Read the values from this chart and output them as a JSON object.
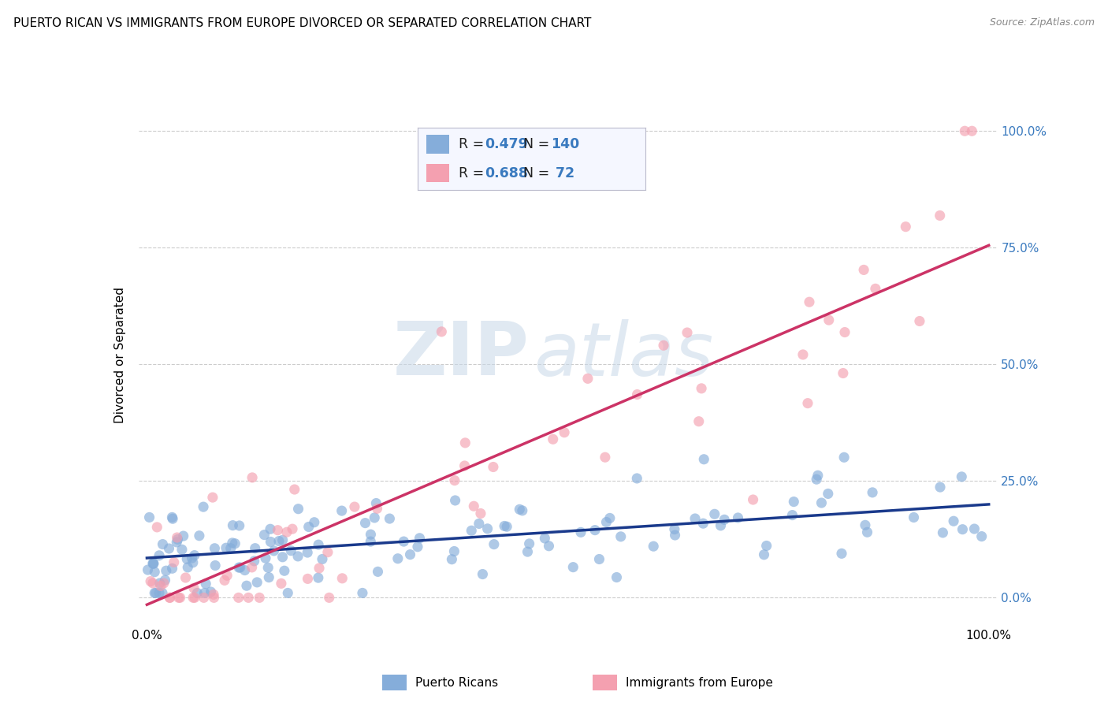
{
  "title": "PUERTO RICAN VS IMMIGRANTS FROM EUROPE DIVORCED OR SEPARATED CORRELATION CHART",
  "source": "Source: ZipAtlas.com",
  "ylabel": "Divorced or Separated",
  "y_tick_labels": [
    "0.0%",
    "25.0%",
    "50.0%",
    "75.0%",
    "100.0%"
  ],
  "y_tick_positions": [
    0.0,
    0.25,
    0.5,
    0.75,
    1.0
  ],
  "blue_color": "#85ADDA",
  "blue_line_color": "#1a3a8c",
  "pink_color": "#F4A0B0",
  "pink_line_color": "#CC3366",
  "R_blue": 0.479,
  "N_blue": 140,
  "R_pink": 0.688,
  "N_pink": 72,
  "watermark_zip": "ZIP",
  "watermark_atlas": "atlas",
  "blue_trend_x": [
    0.0,
    1.0
  ],
  "blue_trend_y": [
    0.085,
    0.2
  ],
  "pink_trend_x": [
    0.0,
    1.0
  ],
  "pink_trend_y": [
    -0.015,
    0.755
  ],
  "ylim_min": -0.06,
  "ylim_max": 1.1,
  "xlim_min": -0.01,
  "xlim_max": 1.01,
  "legend_label_blue": "Puerto Ricans",
  "legend_label_pink": "Immigrants from Europe",
  "title_fontsize": 11,
  "source_fontsize": 9,
  "tick_fontsize": 11
}
